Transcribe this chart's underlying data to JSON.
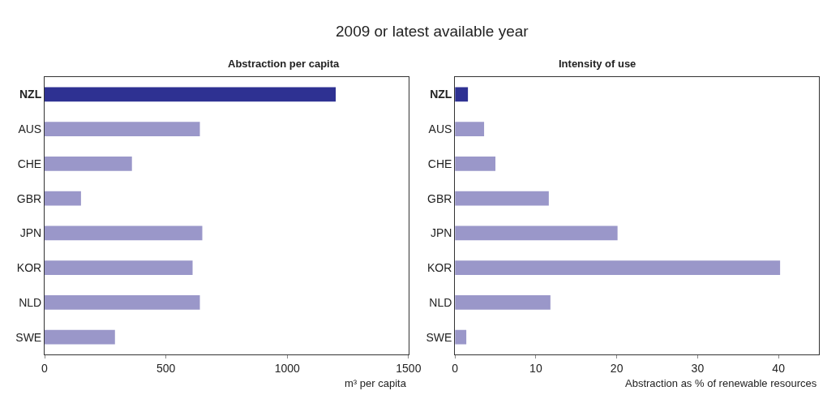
{
  "chart_data": [
    {
      "type": "bar",
      "orientation": "horizontal",
      "subtitle": "2009 or latest available year",
      "title": "Abstraction per capita",
      "xlabel": "m³ per capita",
      "categories": [
        "NZL",
        "AUS",
        "CHE",
        "GBR",
        "JPN",
        "KOR",
        "NLD",
        "SWE"
      ],
      "values": [
        1200,
        640,
        360,
        150,
        650,
        610,
        640,
        290
      ],
      "colors": [
        "#2e3192",
        "#9a97c9",
        "#9a97c9",
        "#9a97c9",
        "#9a97c9",
        "#9a97c9",
        "#9a97c9",
        "#9a97c9"
      ],
      "xlim": [
        0,
        1500
      ],
      "xticks": [
        0,
        500,
        1000,
        1500
      ]
    },
    {
      "type": "bar",
      "orientation": "horizontal",
      "title": "Intensity of use",
      "xlabel": "Abstraction as % of renewable resources",
      "categories": [
        "NZL",
        "AUS",
        "CHE",
        "GBR",
        "JPN",
        "KOR",
        "NLD",
        "SWE"
      ],
      "values": [
        1.6,
        3.6,
        5.0,
        11.6,
        20.1,
        40.2,
        11.8,
        1.4
      ],
      "colors": [
        "#2e3192",
        "#9a97c9",
        "#9a97c9",
        "#9a97c9",
        "#9a97c9",
        "#9a97c9",
        "#9a97c9",
        "#9a97c9"
      ],
      "xlim": [
        0,
        45
      ],
      "xticks": [
        0,
        10,
        20,
        30,
        40
      ]
    }
  ]
}
